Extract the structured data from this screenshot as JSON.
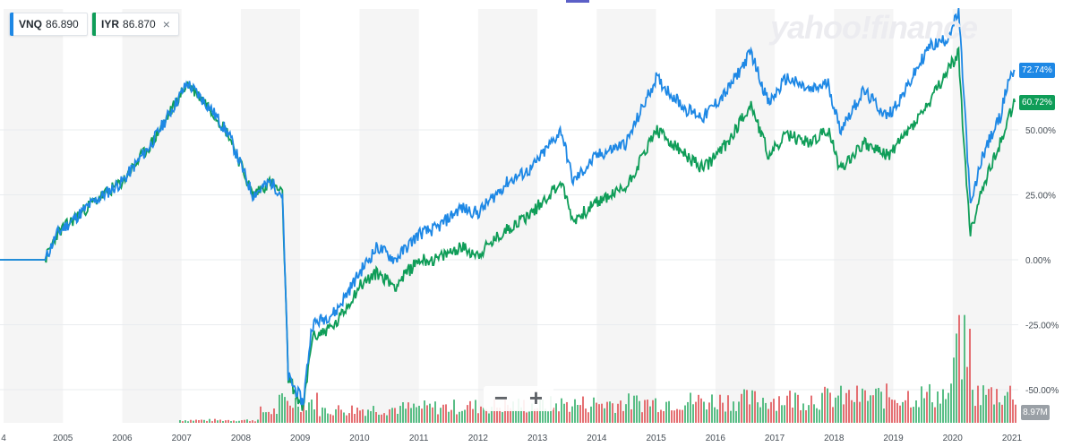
{
  "legend": {
    "vnq": {
      "symbol": "VNQ",
      "value": "86.890"
    },
    "iyr": {
      "symbol": "IYR",
      "value": "86.870"
    },
    "close_glyph": "×"
  },
  "watermark": "yahoo!finance",
  "zoom": {
    "minus": "−",
    "plus": "+"
  },
  "volume_label": "8.97M",
  "tags": {
    "vnq": "72.74%",
    "iyr": "60.72%"
  },
  "colors": {
    "vnq": "#1e88e5",
    "iyr": "#0f9d58",
    "vol_up": "#3cb371",
    "vol_down": "#e0575b",
    "band": "#f5f5f5"
  },
  "chart_data": {
    "type": "line",
    "title": "",
    "xlabel": "",
    "ylabel": "",
    "ylim": [
      -60,
      100
    ],
    "y_ticks": [
      "50.00%",
      "25.00%",
      "0.00%",
      "-25.00%",
      "-50.00%"
    ],
    "y_tick_values": [
      50,
      25,
      0,
      -25,
      -50
    ],
    "x_ticks": [
      "4",
      "2005",
      "2006",
      "2007",
      "2008",
      "2009",
      "2010",
      "2011",
      "2012",
      "2013",
      "2014",
      "2015",
      "2016",
      "2017",
      "2018",
      "2019",
      "2020",
      "2021"
    ],
    "x_tick_years": [
      2004.0,
      2005.0,
      2006.0,
      2007.0,
      2008.0,
      2009.0,
      2010.0,
      2011.0,
      2012.0,
      2013.0,
      2014.0,
      2015.0,
      2016.0,
      2017.0,
      2018.0,
      2019.0,
      2020.0,
      2021.0
    ],
    "series": [
      {
        "name": "VNQ",
        "x": [
          2003.9,
          2004.7,
          2004.9,
          2005.5,
          2006.0,
          2006.5,
          2007.1,
          2007.5,
          2007.8,
          2008.2,
          2008.5,
          2008.7,
          2008.8,
          2009.05,
          2009.2,
          2009.6,
          2010.0,
          2010.3,
          2010.6,
          2011.0,
          2011.3,
          2011.7,
          2012.0,
          2012.5,
          2012.9,
          2013.4,
          2013.6,
          2014.0,
          2014.5,
          2015.0,
          2015.5,
          2015.8,
          2016.2,
          2016.6,
          2016.9,
          2017.2,
          2017.6,
          2017.9,
          2018.1,
          2018.5,
          2018.9,
          2019.2,
          2019.6,
          2019.9,
          2020.1,
          2020.2,
          2020.3,
          2020.5,
          2020.8,
          2020.95,
          2021.05
        ],
        "values": [
          0,
          0,
          10,
          22,
          30,
          45,
          68,
          58,
          48,
          25,
          30,
          25,
          -45,
          -55,
          -25,
          -20,
          -5,
          5,
          0,
          10,
          12,
          20,
          18,
          30,
          35,
          50,
          30,
          40,
          45,
          70,
          58,
          55,
          65,
          80,
          60,
          70,
          65,
          68,
          50,
          65,
          55,
          65,
          82,
          85,
          95,
          60,
          20,
          40,
          55,
          70,
          72.74
        ]
      },
      {
        "name": "IYR",
        "x": [
          2003.9,
          2004.7,
          2004.9,
          2005.5,
          2006.0,
          2006.5,
          2007.1,
          2007.5,
          2007.8,
          2008.2,
          2008.5,
          2008.7,
          2008.8,
          2009.05,
          2009.2,
          2009.6,
          2010.0,
          2010.3,
          2010.6,
          2011.0,
          2011.3,
          2011.7,
          2012.0,
          2012.5,
          2012.9,
          2013.4,
          2013.6,
          2014.0,
          2014.5,
          2015.0,
          2015.5,
          2015.8,
          2016.2,
          2016.6,
          2016.9,
          2017.2,
          2017.6,
          2017.9,
          2018.1,
          2018.5,
          2018.9,
          2019.2,
          2019.6,
          2019.9,
          2020.1,
          2020.2,
          2020.3,
          2020.5,
          2020.8,
          2020.95,
          2021.05
        ],
        "values": [
          0,
          0,
          10,
          22,
          30,
          45,
          68,
          58,
          48,
          25,
          30,
          25,
          -45,
          -58,
          -30,
          -25,
          -10,
          -5,
          -10,
          0,
          0,
          5,
          2,
          12,
          18,
          30,
          15,
          22,
          28,
          50,
          40,
          35,
          45,
          60,
          40,
          48,
          45,
          50,
          35,
          45,
          40,
          48,
          60,
          72,
          80,
          40,
          10,
          28,
          45,
          55,
          60.72
        ]
      }
    ],
    "volume_label": "8.97M"
  }
}
